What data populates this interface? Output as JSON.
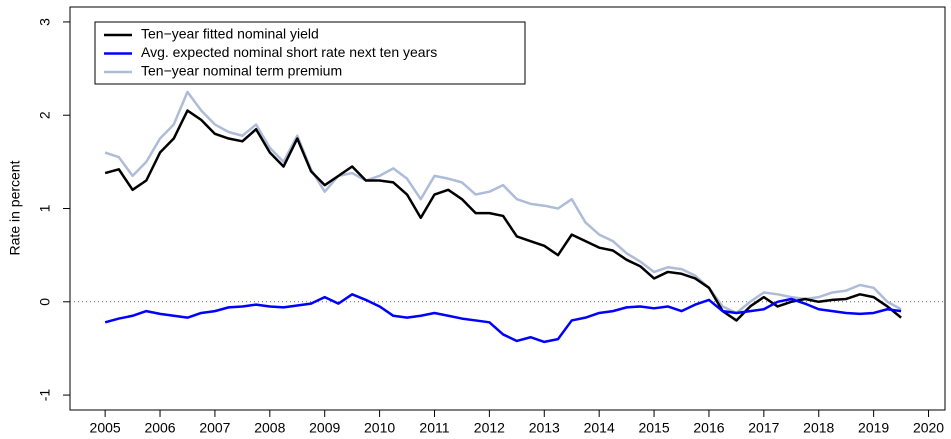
{
  "chart_data": {
    "type": "line",
    "y_label": "Rate in percent",
    "x": [
      2005,
      2005.25,
      2005.5,
      2005.75,
      2006,
      2006.25,
      2006.5,
      2006.75,
      2007,
      2007.25,
      2007.5,
      2007.75,
      2008,
      2008.25,
      2008.5,
      2008.75,
      2009,
      2009.25,
      2009.5,
      2009.75,
      2010,
      2010.25,
      2010.5,
      2010.75,
      2011,
      2011.25,
      2011.5,
      2011.75,
      2012,
      2012.25,
      2012.5,
      2012.75,
      2013,
      2013.25,
      2013.5,
      2013.75,
      2014,
      2014.25,
      2014.5,
      2014.75,
      2015,
      2015.25,
      2015.5,
      2015.75,
      2016,
      2016.25,
      2016.5,
      2016.75,
      2017,
      2017.25,
      2017.5,
      2017.75,
      2018,
      2018.25,
      2018.5,
      2018.75,
      2019,
      2019.25,
      2019.5
    ],
    "series": [
      {
        "name": "Ten−year fitted nominal yield",
        "color": "#000000",
        "values": [
          1.38,
          1.42,
          1.2,
          1.3,
          1.6,
          1.75,
          2.05,
          1.95,
          1.8,
          1.75,
          1.72,
          1.85,
          1.6,
          1.45,
          1.75,
          1.4,
          1.25,
          1.35,
          1.45,
          1.3,
          1.3,
          1.28,
          1.15,
          0.9,
          1.15,
          1.2,
          1.1,
          0.95,
          0.95,
          0.92,
          0.7,
          0.65,
          0.6,
          0.5,
          0.72,
          0.65,
          0.58,
          0.55,
          0.45,
          0.38,
          0.25,
          0.32,
          0.3,
          0.25,
          0.15,
          -0.1,
          -0.2,
          -0.05,
          0.05,
          -0.05,
          0.0,
          0.03,
          0.0,
          0.02,
          0.03,
          0.08,
          0.05,
          -0.05,
          -0.17
        ]
      },
      {
        "name": "Avg. expected nominal short rate next ten years",
        "color": "#0000ff",
        "values": [
          -0.22,
          -0.18,
          -0.15,
          -0.1,
          -0.13,
          -0.15,
          -0.17,
          -0.12,
          -0.1,
          -0.06,
          -0.05,
          -0.03,
          -0.05,
          -0.06,
          -0.04,
          -0.02,
          0.05,
          -0.02,
          0.08,
          0.02,
          -0.05,
          -0.15,
          -0.17,
          -0.15,
          -0.12,
          -0.15,
          -0.18,
          -0.2,
          -0.22,
          -0.35,
          -0.42,
          -0.38,
          -0.43,
          -0.4,
          -0.2,
          -0.17,
          -0.12,
          -0.1,
          -0.06,
          -0.05,
          -0.07,
          -0.05,
          -0.1,
          -0.03,
          0.02,
          -0.1,
          -0.12,
          -0.1,
          -0.08,
          0.0,
          0.03,
          -0.02,
          -0.08,
          -0.1,
          -0.12,
          -0.13,
          -0.12,
          -0.08,
          -0.1
        ]
      },
      {
        "name": "Ten−year nominal term premium",
        "color": "#aebcd8",
        "values": [
          1.6,
          1.55,
          1.35,
          1.5,
          1.75,
          1.9,
          2.25,
          2.05,
          1.9,
          1.82,
          1.78,
          1.9,
          1.65,
          1.5,
          1.78,
          1.42,
          1.18,
          1.35,
          1.38,
          1.3,
          1.35,
          1.43,
          1.32,
          1.1,
          1.35,
          1.32,
          1.28,
          1.15,
          1.18,
          1.25,
          1.1,
          1.05,
          1.03,
          1.0,
          1.1,
          0.85,
          0.72,
          0.65,
          0.52,
          0.43,
          0.32,
          0.37,
          0.35,
          0.28,
          0.15,
          -0.05,
          -0.12,
          0.0,
          0.1,
          0.08,
          0.05,
          0.03,
          0.05,
          0.1,
          0.12,
          0.18,
          0.15,
          0.0,
          -0.08
        ]
      }
    ],
    "xlim": [
      2004.36,
      2020.3
    ],
    "xticks": [
      2005,
      2006,
      2007,
      2008,
      2009,
      2010,
      2011,
      2012,
      2013,
      2014,
      2015,
      2016,
      2017,
      2018,
      2019,
      2020
    ],
    "ylim": [
      -1.16,
      3.16
    ],
    "yticks": [
      -1,
      0,
      1,
      2,
      3
    ],
    "reference_line": 0,
    "legend": "top-left"
  }
}
